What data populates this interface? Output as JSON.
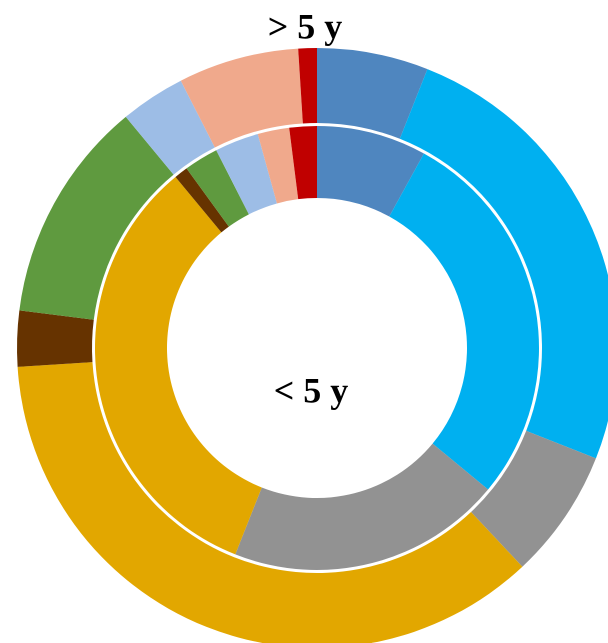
{
  "chart_data": {
    "type": "donut",
    "colors": [
      "#4f86bf",
      "#00b0f0",
      "#929292",
      "#e2a700",
      "#663300",
      "#5f9a3f",
      "#9dbde6",
      "#f0a98c",
      "#c00000"
    ],
    "series": [
      {
        "name": "< 5 y",
        "values": [
          8,
          28,
          20,
          33,
          1,
          2.5,
          3.2,
          2.3,
          2
        ]
      },
      {
        "name": "> 5 y",
        "values": [
          6,
          25,
          7,
          36,
          3,
          12,
          3.5,
          6.5,
          1
        ]
      }
    ]
  }
}
